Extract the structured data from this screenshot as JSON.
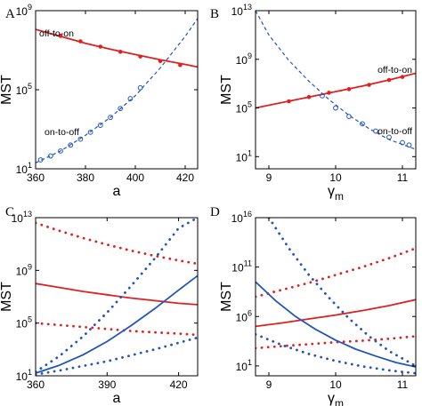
{
  "chart_data": [
    {
      "panel": "A",
      "type": "line",
      "xlabel": "a",
      "ylabel": "MST",
      "xlim": [
        360,
        425
      ],
      "ylim_log10": [
        1,
        9
      ],
      "x_ticks": [
        "360",
        "380",
        "400",
        "420"
      ],
      "y_ticks": [
        {
          "base": "10",
          "exp": "1"
        },
        {
          "base": "10",
          "exp": "5"
        },
        {
          "base": "10",
          "exp": "9"
        }
      ],
      "annotations": [
        "off-to-on",
        "on-to-off"
      ],
      "series": [
        {
          "name": "off-to-on",
          "color": "#e02020",
          "style": "solid",
          "x": [
            360,
            370,
            380,
            390,
            400,
            410,
            420,
            425
          ],
          "log10_y": [
            8.05,
            7.7,
            7.35,
            7.05,
            6.78,
            6.52,
            6.28,
            6.15
          ]
        },
        {
          "name": "off-to-on",
          "color": "#e02020",
          "style": "markers",
          "x": [
            370,
            378,
            386,
            394,
            402,
            410,
            418
          ],
          "log10_y": [
            7.72,
            7.45,
            7.18,
            6.92,
            6.68,
            6.45,
            6.25
          ]
        },
        {
          "name": "on-to-off",
          "color": "#2255bb",
          "style": "dashed",
          "x": [
            360,
            370,
            380,
            390,
            400,
            410,
            420,
            425
          ],
          "log10_y": [
            1.3,
            1.9,
            2.7,
            3.6,
            4.7,
            6.1,
            7.7,
            8.6
          ]
        },
        {
          "name": "on-to-off",
          "color": "#2255bb",
          "style": "open-markers",
          "x": [
            362,
            366,
            370,
            374,
            378,
            382,
            386,
            390,
            394,
            398,
            402
          ],
          "log10_y": [
            1.45,
            1.65,
            1.9,
            2.2,
            2.5,
            2.85,
            3.2,
            3.6,
            4.05,
            4.55,
            5.1
          ]
        }
      ]
    },
    {
      "panel": "B",
      "type": "line",
      "xlabel": "γ",
      "xlabel_sub": "m",
      "ylabel": "MST",
      "xlim": [
        8.8,
        11.2
      ],
      "ylim_log10": [
        0,
        13
      ],
      "x_ticks": [
        "9",
        "10",
        "11"
      ],
      "y_ticks": [
        {
          "base": "10",
          "exp": "1"
        },
        {
          "base": "10",
          "exp": "5"
        },
        {
          "base": "10",
          "exp": "9"
        },
        {
          "base": "10",
          "exp": "13"
        }
      ],
      "annotations": [
        "off-to-on",
        "on-to-off"
      ],
      "series": [
        {
          "name": "off-to-on",
          "color": "#e02020",
          "style": "solid",
          "x": [
            8.8,
            9.2,
            9.6,
            10.0,
            10.4,
            10.8,
            11.2
          ],
          "log10_y": [
            5.0,
            5.45,
            5.9,
            6.35,
            6.8,
            7.3,
            7.85
          ]
        },
        {
          "name": "off-to-on",
          "color": "#e02020",
          "style": "markers",
          "x": [
            9.3,
            9.6,
            9.9,
            10.2,
            10.5,
            10.8,
            11.0
          ],
          "log10_y": [
            5.55,
            5.9,
            6.25,
            6.55,
            6.9,
            7.3,
            7.55
          ]
        },
        {
          "name": "on-to-off",
          "color": "#2255bb",
          "style": "dashed",
          "x": [
            8.8,
            9.0,
            9.3,
            9.6,
            9.9,
            10.2,
            10.5,
            10.8,
            11.2
          ],
          "log10_y": [
            13.0,
            11.0,
            8.9,
            7.2,
            5.7,
            4.4,
            3.3,
            2.4,
            1.6
          ]
        },
        {
          "name": "on-to-off",
          "color": "#2255bb",
          "style": "open-markers",
          "x": [
            9.8,
            10.0,
            10.2,
            10.4,
            10.6,
            10.8,
            11.0,
            11.1
          ],
          "log10_y": [
            6.0,
            5.0,
            4.3,
            3.7,
            3.1,
            2.6,
            2.15,
            1.95
          ]
        }
      ]
    },
    {
      "panel": "C",
      "type": "line",
      "xlabel": "a",
      "ylabel": "MST",
      "xlim": [
        360,
        428
      ],
      "ylim_log10": [
        1,
        13
      ],
      "x_ticks": [
        "360",
        "390",
        "420"
      ],
      "y_ticks": [
        {
          "base": "10",
          "exp": "1"
        },
        {
          "base": "10",
          "exp": "5"
        },
        {
          "base": "10",
          "exp": "9"
        },
        {
          "base": "10",
          "exp": "13"
        }
      ],
      "series": [
        {
          "color": "#e02020",
          "style": "dotted",
          "x": [
            360,
            370,
            380,
            390,
            400,
            410,
            420,
            428
          ],
          "log10_y": [
            12.6,
            12.0,
            11.45,
            10.95,
            10.5,
            10.1,
            9.75,
            9.5
          ]
        },
        {
          "color": "#e02020",
          "style": "solid",
          "x": [
            360,
            370,
            380,
            390,
            400,
            410,
            420,
            428
          ],
          "log10_y": [
            8.0,
            7.7,
            7.4,
            7.15,
            6.9,
            6.7,
            6.5,
            6.4
          ]
        },
        {
          "color": "#e02020",
          "style": "dotted",
          "x": [
            360,
            370,
            380,
            390,
            400,
            410,
            420,
            428
          ],
          "log10_y": [
            5.0,
            4.85,
            4.7,
            4.55,
            4.4,
            4.3,
            4.2,
            4.1
          ]
        },
        {
          "color": "#2255bb",
          "style": "dotted",
          "x": [
            360,
            370,
            380,
            390,
            400,
            410,
            420,
            428
          ],
          "log10_y": [
            1.3,
            2.5,
            4.0,
            5.8,
            7.8,
            9.9,
            12.2,
            13.0
          ]
        },
        {
          "color": "#2255bb",
          "style": "solid",
          "x": [
            360,
            370,
            380,
            390,
            400,
            410,
            420,
            428
          ],
          "log10_y": [
            1.2,
            1.8,
            2.6,
            3.6,
            4.8,
            6.1,
            7.5,
            8.6
          ]
        },
        {
          "color": "#2255bb",
          "style": "dotted",
          "x": [
            360,
            370,
            380,
            390,
            400,
            410,
            420,
            428
          ],
          "log10_y": [
            1.1,
            1.4,
            1.75,
            2.1,
            2.55,
            3.0,
            3.5,
            3.9
          ]
        }
      ]
    },
    {
      "panel": "D",
      "type": "line",
      "xlabel": "γ",
      "xlabel_sub": "m",
      "ylabel": "MST",
      "xlim": [
        8.8,
        11.2
      ],
      "ylim_log10": [
        0,
        16
      ],
      "x_ticks": [
        "9",
        "10",
        "11"
      ],
      "y_ticks": [
        {
          "base": "10",
          "exp": "1"
        },
        {
          "base": "10",
          "exp": "6"
        },
        {
          "base": "10",
          "exp": "11"
        },
        {
          "base": "10",
          "exp": "16"
        }
      ],
      "series": [
        {
          "color": "#e02020",
          "style": "dotted",
          "x": [
            8.8,
            9.2,
            9.6,
            10.0,
            10.4,
            10.8,
            11.2
          ],
          "log10_y": [
            8.0,
            8.7,
            9.4,
            10.2,
            11.0,
            11.9,
            12.9
          ]
        },
        {
          "color": "#e02020",
          "style": "solid",
          "x": [
            8.8,
            9.2,
            9.6,
            10.0,
            10.4,
            10.8,
            11.2
          ],
          "log10_y": [
            5.0,
            5.35,
            5.75,
            6.15,
            6.6,
            7.1,
            7.7
          ]
        },
        {
          "color": "#e02020",
          "style": "dotted",
          "x": [
            8.8,
            9.2,
            9.6,
            10.0,
            10.4,
            10.8,
            11.2
          ],
          "log10_y": [
            2.8,
            3.0,
            3.2,
            3.4,
            3.55,
            3.75,
            4.0
          ]
        },
        {
          "color": "#2255bb",
          "style": "dotted",
          "x": [
            9.0,
            9.3,
            9.6,
            9.9,
            10.2,
            10.5,
            10.8,
            11.2
          ],
          "log10_y": [
            16.0,
            12.9,
            10.2,
            7.9,
            5.8,
            4.0,
            2.5,
            1.0
          ]
        },
        {
          "color": "#2255bb",
          "style": "solid",
          "x": [
            8.8,
            9.1,
            9.4,
            9.7,
            10.0,
            10.3,
            10.6,
            10.9,
            11.2
          ],
          "log10_y": [
            9.5,
            7.6,
            6.0,
            4.7,
            3.6,
            2.7,
            2.0,
            1.35,
            0.9
          ]
        },
        {
          "color": "#2255bb",
          "style": "dotted",
          "x": [
            8.8,
            9.2,
            9.6,
            10.0,
            10.4,
            10.8,
            11.2
          ],
          "log10_y": [
            4.2,
            3.1,
            2.2,
            1.5,
            0.95,
            0.55,
            0.25
          ]
        }
      ]
    }
  ]
}
